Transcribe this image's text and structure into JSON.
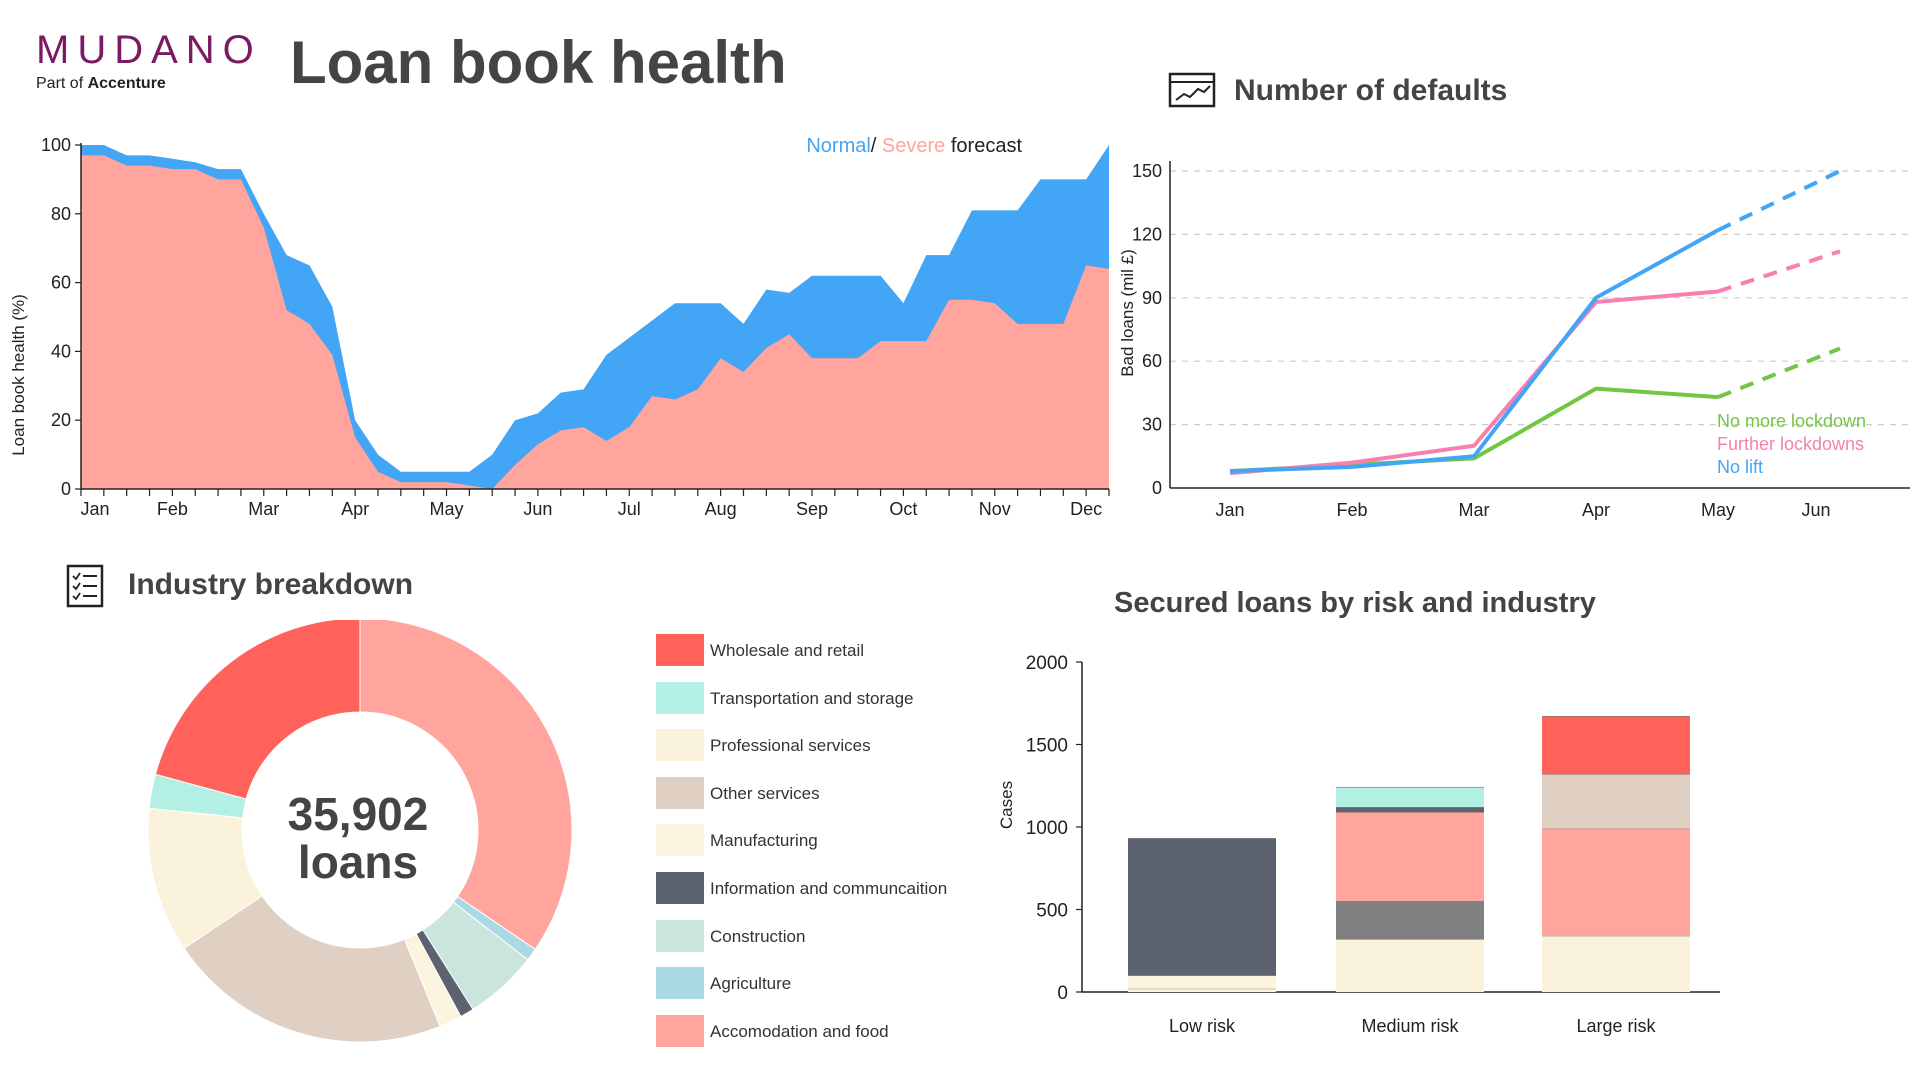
{
  "brand": {
    "name": "MUDANO",
    "tagline_prefix": "Part of ",
    "tagline_company": "Accenture",
    "brand_color": "#7a1a63"
  },
  "header": {
    "title": "Loan book health"
  },
  "colors": {
    "normal": "#42a5f5",
    "severe": "#ffa59e",
    "text": "#444444"
  },
  "health_chart": {
    "ylabel": "Loan book health (%)",
    "legend": {
      "normal": "Normal",
      "sep": "/ ",
      "severe": "Severe",
      "suffix": " forecast"
    }
  },
  "defaults_section": {
    "title": "Number of defaults",
    "icon": "line-chart-icon"
  },
  "industry_section": {
    "title": "Industry breakdown",
    "icon": "checklist-icon",
    "total_number": "35,902",
    "total_unit": "loans"
  },
  "secured_section": {
    "title": "Secured loans by risk and industry"
  },
  "legend_items": [
    {
      "label": "Wholesale and retail",
      "color": "#ff625a"
    },
    {
      "label": "Transportation and storage",
      "color": "#b3f0e3"
    },
    {
      "label": "Professional services",
      "color": "#fbf2dc"
    },
    {
      "label": "Other services",
      "color": "#e0cfc3"
    },
    {
      "label": "Manufacturing",
      "color": "#fbf4df"
    },
    {
      "label": "Information and communcaition",
      "color": "#5d6270"
    },
    {
      "label": "Construction",
      "color": "#c9e5de"
    },
    {
      "label": "Agriculture",
      "color": "#abd9e3"
    },
    {
      "label": "Accomodation and food",
      "color": "#ffa59e"
    }
  ],
  "chart_data": [
    {
      "type": "area",
      "ylabel": "Loan book health (%)",
      "xlabel": "",
      "ylim": [
        0,
        100
      ],
      "yticks": [
        0,
        20,
        40,
        60,
        80,
        100
      ],
      "xticks": [
        "Jan",
        "Feb",
        "Mar",
        "Apr",
        "May",
        "Jun",
        "Jul",
        "Aug",
        "Sep",
        "Oct",
        "Nov",
        "Dec"
      ],
      "x": [
        0,
        0.25,
        0.5,
        0.75,
        1.0,
        1.25,
        1.5,
        1.75,
        2.0,
        2.25,
        2.5,
        2.75,
        3.0,
        3.25,
        3.5,
        3.75,
        4.0,
        4.25,
        4.5,
        4.75,
        5.0,
        5.25,
        5.5,
        5.75,
        6.0,
        6.25,
        6.5,
        6.75,
        7.0,
        7.25,
        7.5,
        7.75,
        8.0,
        8.25,
        8.5,
        8.75,
        9.0,
        9.25,
        9.5,
        9.75,
        10.0,
        10.25,
        10.5,
        10.75,
        11.0,
        11.25
      ],
      "series": [
        {
          "name": "Normal",
          "color": "#42a5f5",
          "values": [
            100,
            100,
            97,
            97,
            96,
            95,
            93,
            93,
            80,
            68,
            65,
            53,
            20,
            10,
            5,
            5,
            5,
            5,
            10,
            20,
            22,
            28,
            29,
            39,
            44,
            49,
            54,
            54,
            54,
            48,
            58,
            57,
            62,
            62,
            62,
            62,
            54,
            68,
            68,
            81,
            81,
            81,
            90,
            90,
            90,
            100
          ]
        },
        {
          "name": "Severe",
          "color": "#ffa59e",
          "values": [
            97,
            97,
            94,
            94,
            93,
            93,
            90,
            90,
            76,
            52,
            48,
            39,
            15,
            5,
            2,
            2,
            2,
            1,
            0,
            7,
            13,
            17,
            18,
            14,
            18,
            27,
            26,
            29,
            38,
            34,
            41,
            45,
            38,
            38,
            38,
            43,
            43,
            43,
            55,
            55,
            54,
            48,
            48,
            48,
            65,
            64
          ]
        }
      ]
    },
    {
      "type": "line",
      "ylabel": "Bad loans (mil £)",
      "xlabel": "",
      "ylim": [
        0,
        150
      ],
      "yticks": [
        0,
        30,
        60,
        90,
        120,
        150
      ],
      "categories": [
        "Jan",
        "Feb",
        "Mar",
        "Apr",
        "May",
        "Jun"
      ],
      "x": [
        0,
        1,
        2,
        3,
        4,
        5
      ],
      "dashed_from_x": 4,
      "grid": true,
      "series": [
        {
          "name": "No more lockdown",
          "color": "#73c644",
          "values": [
            8,
            11,
            14,
            47,
            43,
            66
          ]
        },
        {
          "name": "Further lockdowns",
          "color": "#f77fb1",
          "values": [
            7,
            12,
            20,
            88,
            93,
            112
          ]
        },
        {
          "name": "No lift",
          "color": "#42a5f5",
          "values": [
            8,
            10,
            15,
            90,
            122,
            150
          ]
        }
      ]
    },
    {
      "type": "pie",
      "labels": [
        "Accomodation and food",
        "Agriculture",
        "Construction",
        "Information and communcaition",
        "Manufacturing",
        "Other services",
        "Professional services",
        "Transportation and storage",
        "Wholesale and retail"
      ],
      "values": [
        35.9,
        1.0,
        5.8,
        1.1,
        1.8,
        22.6,
        11.5,
        2.7,
        21.6
      ],
      "colors": [
        "#ffa59e",
        "#abd9e3",
        "#c9e5de",
        "#5d6270",
        "#fbf4df",
        "#e0cfc3",
        "#fbf2dc",
        "#b3f0e3",
        "#ff625a"
      ]
    },
    {
      "type": "bar",
      "stacked": true,
      "ylabel": "Cases",
      "xlabel": "",
      "ylim": [
        0,
        2000
      ],
      "yticks": [
        0,
        500,
        1000,
        1500,
        2000
      ],
      "categories": [
        "Low risk",
        "Medium risk",
        "Large risk"
      ],
      "series": [
        {
          "name": "Professional services",
          "color": "#fbf2dc",
          "values": [
            20,
            320,
            340
          ]
        },
        {
          "name": "Manufacturing",
          "color": "#fbf4df",
          "values": [
            80,
            0,
            0
          ]
        },
        {
          "name": "Information and communcaition",
          "color": "#5d6270",
          "values": [
            830,
            0,
            0
          ]
        },
        {
          "name": "",
          "color": "#808080",
          "values": [
            0,
            230,
            0
          ]
        },
        {
          "name": "Accomodation and food",
          "color": "#ffa59e",
          "values": [
            0,
            540,
            650
          ]
        },
        {
          "name": "Information and communcaition",
          "color": "#5d6270",
          "values": [
            0,
            30,
            0
          ]
        },
        {
          "name": "Transportation and storage",
          "color": "#b3f0e3",
          "values": [
            0,
            120,
            0
          ]
        },
        {
          "name": "Other services",
          "color": "#e0cfc3",
          "values": [
            0,
            0,
            330
          ]
        },
        {
          "name": "Wholesale and retail",
          "color": "#ff625a",
          "values": [
            0,
            0,
            350
          ]
        }
      ]
    }
  ]
}
